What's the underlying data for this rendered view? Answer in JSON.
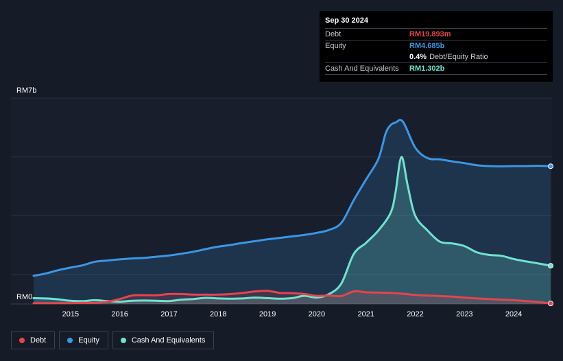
{
  "tooltip": {
    "date": "Sep 30 2024",
    "debt_label": "Debt",
    "debt_value": "RM19.893m",
    "equity_label": "Equity",
    "equity_value": "RM4.685b",
    "ratio_value": "0.4%",
    "ratio_label": "Debt/Equity Ratio",
    "cash_label": "Cash And Equivalents",
    "cash_value": "RM1.302b"
  },
  "legend": [
    {
      "label": "Debt",
      "color": "#e5444e"
    },
    {
      "label": "Equity",
      "color": "#3b97e4"
    },
    {
      "label": "Cash And Equivalents",
      "color": "#6fe3ce"
    }
  ],
  "chart_data": {
    "type": "area",
    "y_top_label": "RM7b",
    "y_bottom_label": "RM0",
    "ylim": [
      0,
      7000
    ],
    "xlim": [
      2014.25,
      2024.75
    ],
    "x_ticks": [
      "2015",
      "2016",
      "2017",
      "2018",
      "2019",
      "2020",
      "2021",
      "2022",
      "2023",
      "2024"
    ],
    "x_tick_values": [
      2015,
      2016,
      2017,
      2018,
      2019,
      2020,
      2021,
      2022,
      2023,
      2024
    ],
    "grid": true,
    "legend_position": "bottom-left",
    "series": [
      {
        "name": "Equity",
        "color": "#3b97e4",
        "x": [
          2014.25,
          2014.5,
          2014.75,
          2015.0,
          2015.25,
          2015.5,
          2015.75,
          2016.0,
          2016.25,
          2016.5,
          2016.75,
          2017.0,
          2017.25,
          2017.5,
          2017.75,
          2018.0,
          2018.25,
          2018.5,
          2018.75,
          2019.0,
          2019.25,
          2019.5,
          2019.75,
          2020.0,
          2020.25,
          2020.5,
          2020.75,
          2021.0,
          2021.25,
          2021.4,
          2021.5,
          2021.6,
          2021.75,
          2022.0,
          2022.25,
          2022.5,
          2022.75,
          2023.0,
          2023.25,
          2023.5,
          2023.75,
          2024.0,
          2024.25,
          2024.5,
          2024.75
        ],
        "values": [
          960,
          1040,
          1150,
          1240,
          1320,
          1440,
          1480,
          1520,
          1550,
          1570,
          1610,
          1650,
          1710,
          1780,
          1870,
          1950,
          2010,
          2080,
          2140,
          2200,
          2250,
          2300,
          2350,
          2420,
          2520,
          2760,
          3530,
          4230,
          4930,
          5800,
          6080,
          6170,
          6200,
          5320,
          4960,
          4920,
          4850,
          4790,
          4720,
          4690,
          4680,
          4690,
          4690,
          4700,
          4685
        ]
      },
      {
        "name": "Cash And Equivalents",
        "color": "#6fe3ce",
        "x": [
          2014.25,
          2014.5,
          2014.75,
          2015.0,
          2015.25,
          2015.5,
          2015.75,
          2016.0,
          2016.25,
          2016.5,
          2016.75,
          2017.0,
          2017.25,
          2017.5,
          2017.75,
          2018.0,
          2018.25,
          2018.5,
          2018.75,
          2019.0,
          2019.25,
          2019.5,
          2019.75,
          2020.0,
          2020.25,
          2020.5,
          2020.75,
          2021.0,
          2021.25,
          2021.5,
          2021.6,
          2021.72,
          2021.85,
          2022.0,
          2022.25,
          2022.5,
          2022.75,
          2023.0,
          2023.25,
          2023.5,
          2023.75,
          2024.0,
          2024.25,
          2024.5,
          2024.75
        ],
        "values": [
          200,
          190,
          160,
          110,
          100,
          130,
          100,
          80,
          110,
          120,
          110,
          100,
          150,
          170,
          210,
          190,
          180,
          190,
          220,
          200,
          180,
          200,
          280,
          220,
          340,
          700,
          1700,
          2080,
          2500,
          3100,
          3800,
          5000,
          4000,
          3000,
          2500,
          2120,
          2060,
          1970,
          1760,
          1670,
          1640,
          1530,
          1450,
          1380,
          1302
        ]
      },
      {
        "name": "Debt",
        "color": "#e5444e",
        "x": [
          2014.25,
          2014.5,
          2014.75,
          2015.0,
          2015.25,
          2015.5,
          2015.75,
          2016.0,
          2016.25,
          2016.5,
          2016.75,
          2017.0,
          2017.25,
          2017.5,
          2017.75,
          2018.0,
          2018.25,
          2018.5,
          2018.75,
          2019.0,
          2019.25,
          2019.5,
          2019.75,
          2020.0,
          2020.25,
          2020.5,
          2020.75,
          2021.0,
          2021.25,
          2021.5,
          2021.75,
          2022.0,
          2022.25,
          2022.5,
          2022.75,
          2023.0,
          2023.25,
          2023.5,
          2023.75,
          2024.0,
          2024.25,
          2024.5,
          2024.75
        ],
        "values": [
          30,
          30,
          30,
          30,
          40,
          40,
          80,
          170,
          290,
          300,
          300,
          340,
          340,
          320,
          320,
          320,
          340,
          380,
          430,
          450,
          380,
          370,
          340,
          280,
          290,
          270,
          430,
          400,
          390,
          380,
          350,
          310,
          290,
          270,
          250,
          220,
          190,
          170,
          150,
          130,
          100,
          70,
          20
        ]
      }
    ]
  }
}
